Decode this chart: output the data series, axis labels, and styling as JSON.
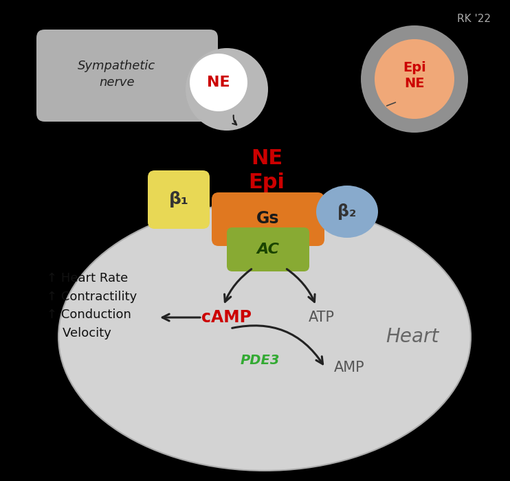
{
  "background_color": "#000000",
  "fig_width": 7.42,
  "fig_height": 7.0,
  "dpi": 100,
  "rk_label": "RK '22",
  "ne_epi_label": "NE\nEpi",
  "gs_label": "Gs",
  "ac_label": "AC",
  "beta1_label": "β₁",
  "beta2_label": "β₂",
  "camp_label": "cAMP",
  "atp_label": "ATP",
  "pde3_label": "PDE3",
  "amp_label": "AMP",
  "heart_label": "Heart",
  "symp_label": "Sympathetic\nnerve",
  "ne_small_label": "NE",
  "epi_ne_label": "Epi\nNE",
  "effects_label": "↑ Heart Rate\n↑ Contractility\n↑ Conduction\n    Velocity",
  "heart_ellipse_color": "#d3d3d3",
  "heart_edge_color": "#aaaaaa",
  "symp_box_color": "#b0b0b0",
  "ne_circle_color": "#ffffff",
  "ne_text_color": "#cc0000",
  "ne_terminal_color": "#b8b8b8",
  "epi_outer_color": "#909090",
  "epi_inner_color": "#f0a878",
  "epi_text_color": "#cc0000",
  "gs_color": "#e07820",
  "ac_color": "#88aa33",
  "beta1_color": "#e8d855",
  "beta2_color": "#88aacc",
  "camp_color": "#cc0000",
  "pde3_color": "#33aa33",
  "atp_amp_color": "#555555",
  "effects_color": "#111111",
  "heart_text_color": "#666666",
  "arrow_color": "#222222",
  "ne_epi_text_color": "#cc0000",
  "rk_color": "#aaaaaa"
}
